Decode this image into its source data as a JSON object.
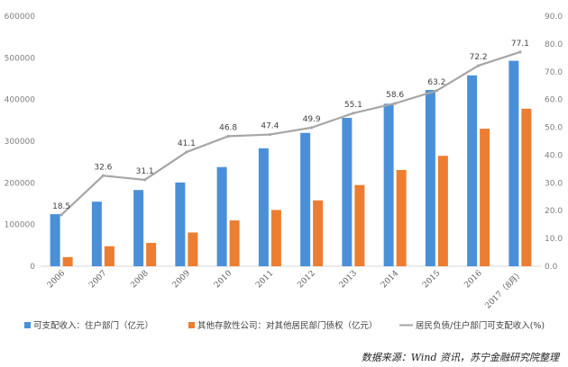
{
  "chart_data": {
    "type": "bar",
    "categories": [
      "2006",
      "2007",
      "2008",
      "2009",
      "2010",
      "2011",
      "2012",
      "2013",
      "2014",
      "2015",
      "2016",
      "2017（8月）"
    ],
    "series": [
      {
        "name": "可支配收入：住户部门（亿元）",
        "type": "bar",
        "axis": "left",
        "color": "#4a90d9",
        "values": [
          125000,
          155000,
          183000,
          201000,
          238000,
          283000,
          320000,
          356000,
          390000,
          423000,
          458000,
          493000
        ]
      },
      {
        "name": "其他存款性公司：对其他居民部门债权（亿元）",
        "type": "bar",
        "axis": "left",
        "color": "#ed7d31",
        "values": [
          22000,
          48000,
          56000,
          81000,
          110000,
          135000,
          158000,
          195000,
          231000,
          265000,
          330000,
          378000
        ]
      },
      {
        "name": "居民负债/住户部门可支配收入(%)",
        "type": "line",
        "axis": "right",
        "color": "#a6a6a6",
        "values": [
          18.5,
          32.6,
          31.1,
          41.1,
          46.8,
          47.4,
          49.9,
          55.1,
          58.6,
          63.2,
          72.2,
          77.1
        ],
        "labels": [
          "18.5",
          "32.6",
          "31.1",
          "41.1",
          "46.8",
          "47.4",
          "49.9",
          "55.1",
          "58.6",
          "63.2",
          "72.2",
          "77.1"
        ]
      }
    ],
    "y_left": {
      "min": 0,
      "max": 600000,
      "step": 100000,
      "ticks": [
        "0",
        "100000",
        "200000",
        "300000",
        "400000",
        "500000",
        "600000"
      ]
    },
    "y_right": {
      "min": 0,
      "max": 90,
      "step": 10,
      "ticks": [
        "0.0",
        "10.0",
        "20.0",
        "30.0",
        "40.0",
        "50.0",
        "60.0",
        "70.0",
        "80.0",
        "90.0"
      ]
    },
    "grid": false,
    "legend_position": "bottom"
  },
  "source_text": "数据来源：Wind 资讯，苏宁金融研究院整理"
}
